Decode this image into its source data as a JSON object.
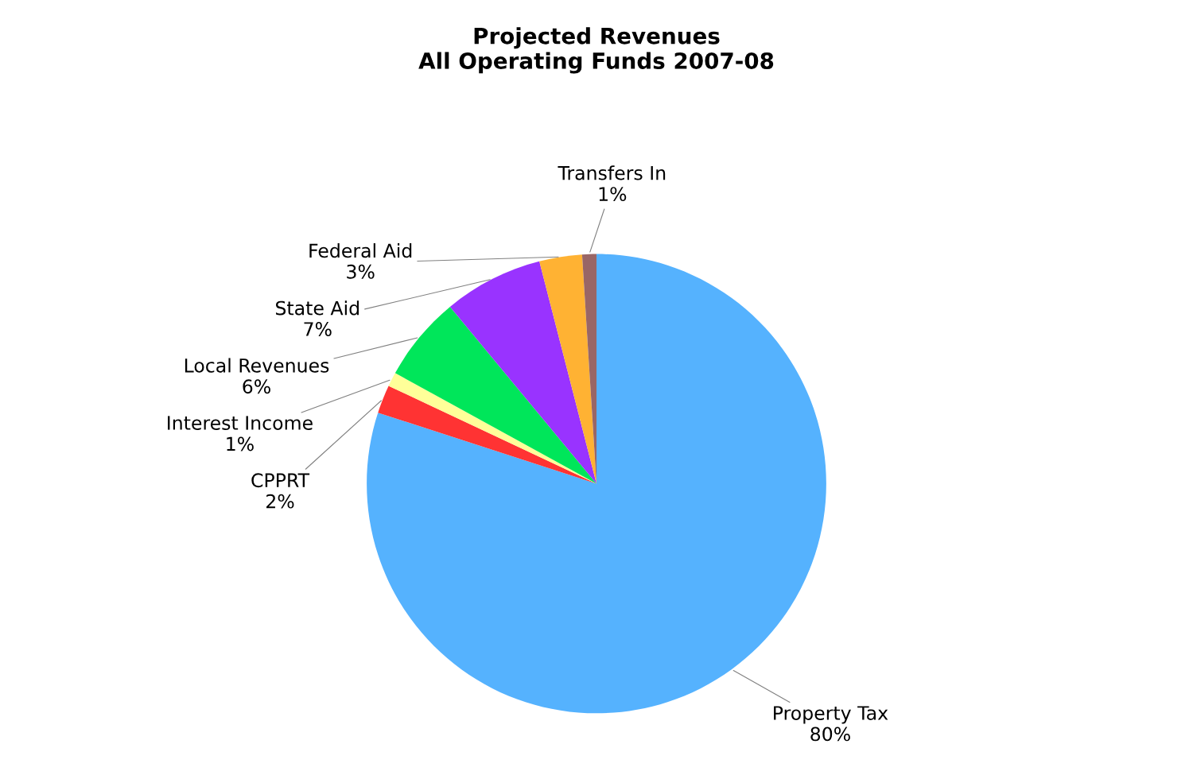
{
  "chart_data": {
    "type": "pie",
    "title": "Projected Revenues\nAll Operating Funds 2007-08",
    "categories": [
      "Property Tax",
      "CPPRT",
      "Interest Income",
      "Local Revenues",
      "State Aid",
      "Federal Aid",
      "Transfers In"
    ],
    "values": [
      80,
      2,
      1,
      6,
      7,
      3,
      1
    ],
    "colors": [
      "#55b2fe",
      "#ff3333",
      "#ffff99",
      "#00e65a",
      "#9933ff",
      "#ffb233",
      "#996666"
    ],
    "value_labels": [
      "80%",
      "2%",
      "1%",
      "6%",
      "7%",
      "3%",
      "1%"
    ],
    "legend": false
  }
}
